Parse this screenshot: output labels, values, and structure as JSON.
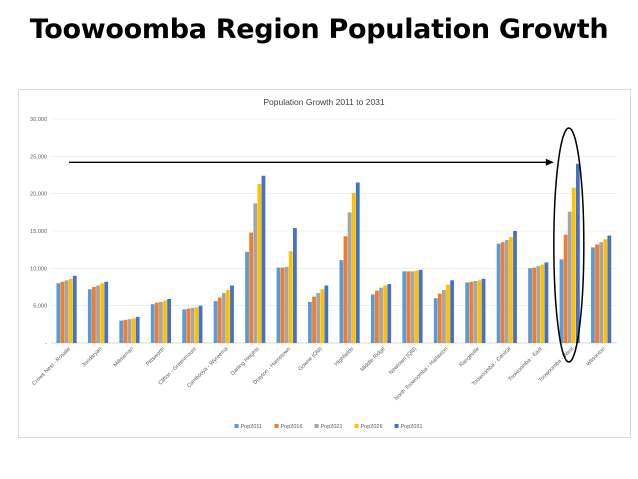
{
  "slide": {
    "title": "Toowoomba Region Population Growth"
  },
  "chart_data": {
    "type": "bar",
    "title": "Population Growth  2011 to 2031",
    "xlabel": "",
    "ylabel": "",
    "ylim": [
      0,
      30000
    ],
    "yticks": [
      0,
      5000,
      10000,
      15000,
      20000,
      25000,
      30000
    ],
    "ytick_labels": [
      "-",
      "5,000",
      "10,000",
      "15,000",
      "20,000",
      "25,000",
      "30,000"
    ],
    "grid": true,
    "legend_position": "bottom",
    "categories": [
      "Crows Nest - Rosalie",
      "Jondaryan",
      "Millmerran",
      "Pittsworth",
      "Clifton - Greenmount",
      "Cambooya - Wyreema",
      "Darling Heights",
      "Drayton - Harristown",
      "Gowrie (Qld)",
      "Highfields",
      "Middle Ridge",
      "Newtown (Qld)",
      "North Toowoomba - Harlaxton",
      "Rangeville",
      "Toowoomba - Central",
      "Toowoomba - East",
      "Toowoomba - West",
      "Wilsonton"
    ],
    "series": [
      {
        "name": "Pop2011",
        "color": "#5b9bd5",
        "values": [
          8000,
          7200,
          3000,
          5200,
          4500,
          5600,
          12200,
          10100,
          5500,
          11100,
          6500,
          9600,
          6000,
          8100,
          13300,
          10000,
          11200,
          12800
        ]
      },
      {
        "name": "Pop2016",
        "color": "#ed7d31",
        "values": [
          8200,
          7500,
          3100,
          5400,
          4600,
          6100,
          14800,
          10100,
          6200,
          14300,
          7000,
          9600,
          6600,
          8200,
          13500,
          10100,
          14500,
          13200
        ]
      },
      {
        "name": "Pop2021",
        "color": "#a5a5a5",
        "values": [
          8400,
          7700,
          3200,
          5500,
          4700,
          6700,
          18700,
          10200,
          6700,
          17500,
          7400,
          9600,
          7100,
          8300,
          13800,
          10300,
          17600,
          13500
        ]
      },
      {
        "name": "Pop2026",
        "color": "#ffc000",
        "values": [
          8600,
          8000,
          3300,
          5700,
          4800,
          7100,
          21300,
          12300,
          7200,
          20100,
          7700,
          9700,
          7800,
          8400,
          14200,
          10500,
          20800,
          13900
        ]
      },
      {
        "name": "Pop2031",
        "color": "#4472c4",
        "values": [
          9000,
          8200,
          3500,
          5900,
          5000,
          7700,
          22400,
          15400,
          7700,
          21500,
          7900,
          9800,
          8400,
          8600,
          15000,
          10800,
          24000,
          14400
        ]
      }
    ],
    "annotations": {
      "arrow_y_value": 24200,
      "highlight_category": "Toowoomba - West"
    }
  }
}
